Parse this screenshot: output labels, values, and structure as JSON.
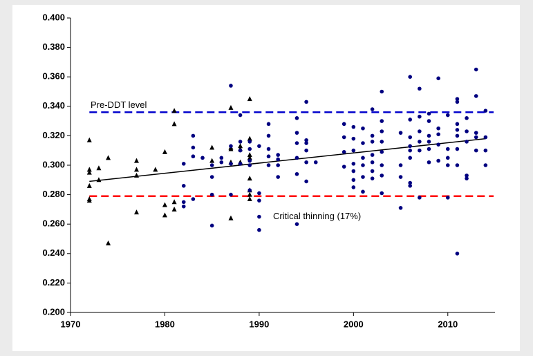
{
  "chart_data": {
    "type": "scatter",
    "xlim": [
      1970,
      2015
    ],
    "xticks": [
      1970,
      1980,
      1990,
      2000,
      2010
    ],
    "ylim": [
      0.2,
      0.4
    ],
    "yticks": [
      {
        "value": 0.2,
        "label": "0.200"
      },
      {
        "value": 0.22,
        "label": "0.220"
      },
      {
        "value": 0.24,
        "label": "0.240"
      },
      {
        "value": 0.26,
        "label": "0.260"
      },
      {
        "value": 0.28,
        "label": "0.280"
      },
      {
        "value": 0.3,
        "label": "0.300"
      },
      {
        "value": 0.32,
        "label": "0.320"
      },
      {
        "value": 0.34,
        "label": "0.340"
      },
      {
        "value": 0.36,
        "label": "0.360"
      },
      {
        "value": 0.38,
        "label": "0.380"
      },
      {
        "value": 0.4,
        "label": "0.400"
      }
    ],
    "grid": false,
    "series": [
      {
        "color": "#000000",
        "marker": "triangle",
        "x": [
          1972,
          1972,
          1972,
          1972,
          1972,
          1972,
          1973,
          1973,
          1974,
          1974,
          1977,
          1977,
          1977,
          1977,
          1979,
          1980,
          1980,
          1980,
          1981,
          1981,
          1981,
          1981,
          1985,
          1985,
          1987,
          1987,
          1987,
          1987,
          1987,
          1988,
          1988,
          1988,
          1989,
          1989,
          1989,
          1989,
          1989,
          1989,
          1989,
          1989
        ],
        "values": [
          0.317,
          0.297,
          0.295,
          0.286,
          0.277,
          0.276,
          0.298,
          0.29,
          0.305,
          0.247,
          0.303,
          0.297,
          0.293,
          0.268,
          0.297,
          0.309,
          0.273,
          0.266,
          0.337,
          0.328,
          0.275,
          0.27,
          0.312,
          0.303,
          0.339,
          0.312,
          0.311,
          0.302,
          0.264,
          0.313,
          0.311,
          0.302,
          0.345,
          0.318,
          0.307,
          0.305,
          0.291,
          0.283,
          0.28,
          0.277
        ]
      },
      {
        "color": "#000080",
        "marker": "circle",
        "x": [
          1982,
          1982,
          1982,
          1982,
          1983,
          1983,
          1983,
          1983,
          1984,
          1985,
          1985,
          1985,
          1985,
          1986,
          1986,
          1987,
          1987,
          1987,
          1987,
          1988,
          1988,
          1988,
          1988,
          1989,
          1989,
          1989,
          1989,
          1989,
          1990,
          1990,
          1990,
          1990,
          1990,
          1991,
          1991,
          1991,
          1991,
          1991,
          1992,
          1992,
          1992,
          1992,
          1994,
          1994,
          1994,
          1994,
          1994,
          1994,
          1995,
          1995,
          1995,
          1995,
          1995,
          1995,
          1996,
          1999,
          1999,
          1999,
          1999,
          2000,
          2000,
          2000,
          2000,
          2000,
          2000,
          2000,
          2001,
          2001,
          2001,
          2001,
          2001,
          2001,
          2002,
          2002,
          2002,
          2002,
          2002,
          2002,
          2002,
          2003,
          2003,
          2003,
          2003,
          2003,
          2003,
          2003,
          2003,
          2005,
          2005,
          2005,
          2005,
          2006,
          2006,
          2006,
          2006,
          2006,
          2006,
          2006,
          2006,
          2007,
          2007,
          2007,
          2007,
          2007,
          2007,
          2008,
          2008,
          2008,
          2008,
          2008,
          2008,
          2009,
          2009,
          2009,
          2009,
          2009,
          2010,
          2010,
          2010,
          2010,
          2010,
          2011,
          2011,
          2011,
          2011,
          2011,
          2011,
          2011,
          2011,
          2012,
          2012,
          2012,
          2012,
          2012,
          2013,
          2013,
          2013,
          2013,
          2013,
          2014,
          2014,
          2014,
          2014
        ],
        "values": [
          0.301,
          0.286,
          0.275,
          0.272,
          0.32,
          0.312,
          0.306,
          0.277,
          0.305,
          0.3,
          0.292,
          0.28,
          0.259,
          0.305,
          0.302,
          0.354,
          0.313,
          0.301,
          0.28,
          0.334,
          0.316,
          0.31,
          0.301,
          0.316,
          0.311,
          0.303,
          0.3,
          0.283,
          0.313,
          0.281,
          0.276,
          0.265,
          0.256,
          0.328,
          0.32,
          0.311,
          0.306,
          0.3,
          0.307,
          0.304,
          0.3,
          0.292,
          0.332,
          0.322,
          0.315,
          0.305,
          0.294,
          0.26,
          0.343,
          0.317,
          0.315,
          0.31,
          0.302,
          0.289,
          0.302,
          0.328,
          0.319,
          0.309,
          0.299,
          0.326,
          0.318,
          0.31,
          0.301,
          0.296,
          0.29,
          0.285,
          0.325,
          0.315,
          0.305,
          0.3,
          0.292,
          0.282,
          0.338,
          0.32,
          0.316,
          0.307,
          0.302,
          0.296,
          0.291,
          0.35,
          0.33,
          0.323,
          0.316,
          0.309,
          0.3,
          0.293,
          0.281,
          0.322,
          0.3,
          0.292,
          0.271,
          0.36,
          0.331,
          0.319,
          0.313,
          0.31,
          0.305,
          0.288,
          0.286,
          0.352,
          0.333,
          0.323,
          0.316,
          0.31,
          0.278,
          0.335,
          0.33,
          0.32,
          0.316,
          0.311,
          0.302,
          0.359,
          0.325,
          0.321,
          0.314,
          0.303,
          0.334,
          0.311,
          0.305,
          0.3,
          0.278,
          0.345,
          0.343,
          0.328,
          0.324,
          0.32,
          0.311,
          0.3,
          0.24,
          0.332,
          0.323,
          0.316,
          0.293,
          0.291,
          0.365,
          0.347,
          0.322,
          0.319,
          0.31,
          0.337,
          0.319,
          0.31,
          0.3
        ]
      }
    ],
    "trend": {
      "color": "#000000",
      "x": [
        1972,
        2014
      ],
      "values": [
        0.289,
        0.318
      ]
    },
    "reference_lines": [
      {
        "label": "Pre-DDT level",
        "value": 0.336,
        "color": "#0000cc"
      },
      {
        "label": "Critical thinning (17%)",
        "value": 0.279,
        "color": "#ff0000"
      }
    ]
  }
}
